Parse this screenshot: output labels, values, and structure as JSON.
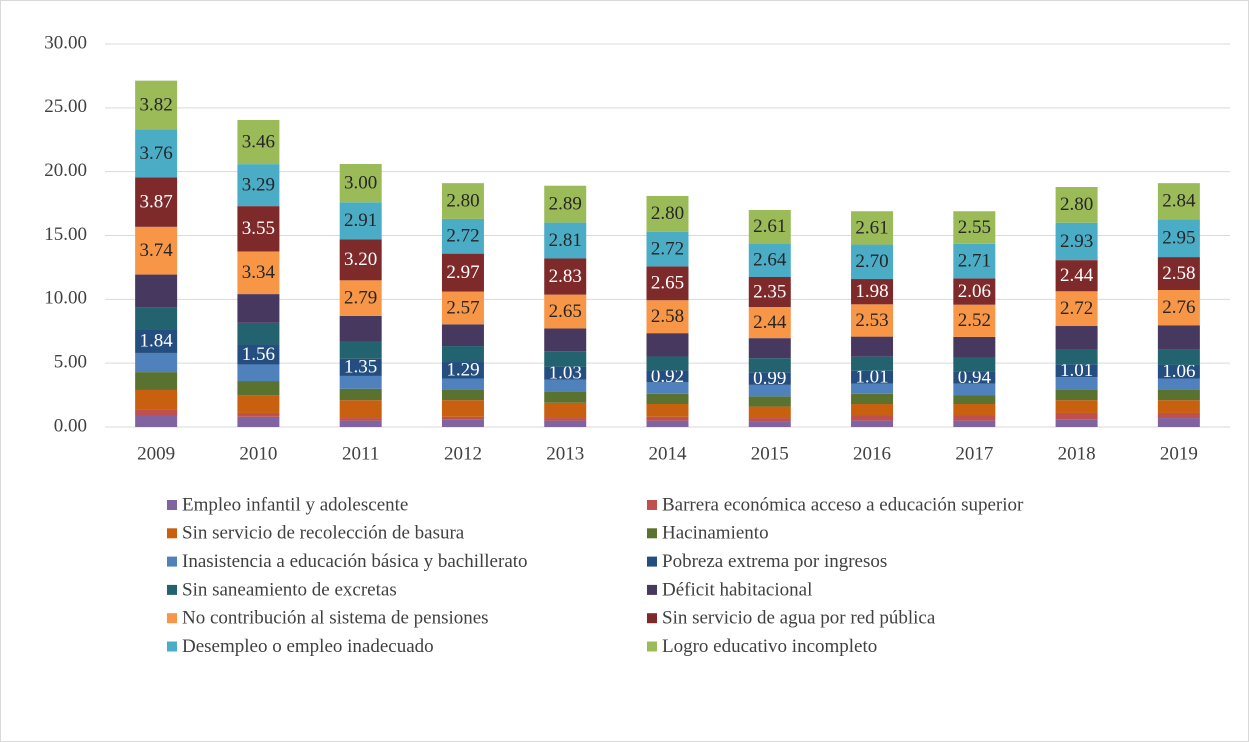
{
  "chart_data": {
    "type": "stacked_bar",
    "categories": [
      "2009",
      "2010",
      "2011",
      "2012",
      "2013",
      "2014",
      "2015",
      "2016",
      "2017",
      "2018",
      "2019"
    ],
    "ylim": [
      0,
      30
    ],
    "yticks": [
      {
        "value": 0,
        "label": "0.00"
      },
      {
        "value": 5,
        "label": "5.00"
      },
      {
        "value": 10,
        "label": "10.00"
      },
      {
        "value": 15,
        "label": "15.00"
      },
      {
        "value": 20,
        "label": "20.00"
      },
      {
        "value": 25,
        "label": "25.00"
      },
      {
        "value": 30,
        "label": "30.00"
      }
    ],
    "grid": true,
    "legend": "bottom",
    "series": [
      {
        "name": "Empleo infantil y adolescente",
        "color": "#8064a2",
        "values": [
          0.9,
          0.8,
          0.5,
          0.6,
          0.5,
          0.5,
          0.4,
          0.5,
          0.5,
          0.6,
          0.7
        ]
      },
      {
        "name": "Barrera económica acceso a educación superior",
        "color": "#c0504d",
        "values": [
          0.5,
          0.3,
          0.2,
          0.2,
          0.2,
          0.3,
          0.3,
          0.4,
          0.4,
          0.5,
          0.4
        ]
      },
      {
        "name": "Sin servicio de recolección de basura",
        "color": "#c8600f",
        "values": [
          1.5,
          1.4,
          1.4,
          1.3,
          1.2,
          1.0,
          0.9,
          0.9,
          0.9,
          1.0,
          1.0
        ]
      },
      {
        "name": "Hacinamiento",
        "color": "#5a7230",
        "values": [
          1.4,
          1.1,
          0.9,
          0.8,
          0.9,
          0.8,
          0.8,
          0.8,
          0.7,
          0.8,
          0.8
        ]
      },
      {
        "name": "Inasistencia a educación básica y bachillerato",
        "color": "#4f81bd",
        "values": [
          1.5,
          1.3,
          1.0,
          0.9,
          0.9,
          0.9,
          0.9,
          0.8,
          0.9,
          1.0,
          0.9
        ]
      },
      {
        "name": "Pobreza extrema por ingresos",
        "color": "#254e80",
        "values": [
          1.84,
          1.56,
          1.35,
          1.29,
          1.03,
          0.92,
          0.99,
          1.01,
          0.94,
          1.01,
          1.06
        ],
        "value_labels": [
          "1.84",
          "1.56",
          "1.35",
          "1.29",
          "1.03",
          "0.92",
          "0.99",
          "1.01",
          "0.94",
          "1.01",
          "1.06"
        ]
      },
      {
        "name": "Sin saneamiento de excretas",
        "color": "#23636f",
        "values": [
          1.7,
          1.7,
          1.35,
          1.25,
          1.2,
          1.1,
          1.1,
          1.1,
          1.1,
          1.2,
          1.2
        ]
      },
      {
        "name": "Déficit habitacional",
        "color": "#47385f",
        "values": [
          2.6,
          2.25,
          2.0,
          1.7,
          1.79,
          1.83,
          1.57,
          1.57,
          1.62,
          1.8,
          1.91
        ]
      },
      {
        "name": "No contribución al sistema de pensiones",
        "color": "#f79646",
        "values": [
          3.74,
          3.34,
          2.79,
          2.57,
          2.65,
          2.58,
          2.44,
          2.53,
          2.52,
          2.72,
          2.76
        ],
        "value_labels": [
          "3.74",
          "3.34",
          "2.79",
          "2.57",
          "2.65",
          "2.58",
          "2.44",
          "2.53",
          "2.52",
          "2.72",
          "2.76"
        ]
      },
      {
        "name": "Sin servicio de agua por red pública",
        "color": "#7e2a2a",
        "values": [
          3.87,
          3.55,
          3.2,
          2.97,
          2.83,
          2.65,
          2.35,
          1.98,
          2.06,
          2.44,
          2.58
        ],
        "value_labels": [
          "3.87",
          "3.55",
          "3.20",
          "2.97",
          "2.83",
          "2.65",
          "2.35",
          "1.98",
          "2.06",
          "2.44",
          "2.58"
        ]
      },
      {
        "name": "Desempleo o empleo inadecuado",
        "color": "#4bacc6",
        "values": [
          3.76,
          3.29,
          2.91,
          2.72,
          2.81,
          2.72,
          2.64,
          2.7,
          2.71,
          2.93,
          2.95
        ],
        "value_labels": [
          "3.76",
          "3.29",
          "2.91",
          "2.72",
          "2.81",
          "2.72",
          "2.64",
          "2.70",
          "2.71",
          "2.93",
          "2.95"
        ]
      },
      {
        "name": "Logro educativo incompleto",
        "color": "#9bbb59",
        "values": [
          3.82,
          3.46,
          3.0,
          2.8,
          2.89,
          2.8,
          2.61,
          2.61,
          2.55,
          2.8,
          2.84
        ],
        "value_labels": [
          "3.82",
          "3.46",
          "3.00",
          "2.80",
          "2.89",
          "2.80",
          "2.61",
          "2.61",
          "2.55",
          "2.80",
          "2.84"
        ]
      }
    ]
  }
}
